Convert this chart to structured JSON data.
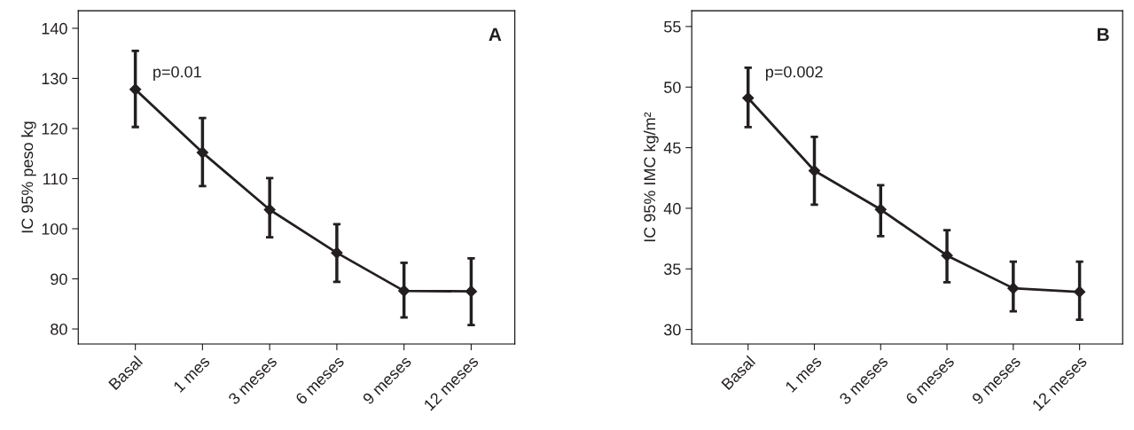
{
  "chart_data": [
    {
      "type": "line",
      "title": "A",
      "ylabel": "IC 95% peso kg",
      "annotations": [
        "p=0.01"
      ],
      "categories": [
        "Basal",
        "1 mes",
        "3 meses",
        "6 meses",
        "9 meses",
        "12 meses"
      ],
      "series": [
        {
          "color": "#231f20",
          "values": [
            127.8,
            115.2,
            103.8,
            95.2,
            87.6,
            87.5
          ],
          "errors": [
            [
              120.3,
              135.5
            ],
            [
              108.5,
              122.1
            ],
            [
              98.3,
              110.1
            ],
            [
              89.4,
              100.9
            ],
            [
              82.3,
              93.2
            ],
            [
              80.8,
              94.1
            ]
          ]
        }
      ],
      "ylim": [
        77,
        143.5
      ],
      "yticks": [
        80,
        90,
        100,
        110,
        120,
        130,
        140
      ],
      "marker": "diamond",
      "line_style": "solid",
      "grid": false,
      "legend": false
    },
    {
      "type": "line",
      "title": "B",
      "ylabel": "IC 95% IMC kg/m²",
      "annotations": [
        "p=0.002"
      ],
      "categories": [
        "Basal",
        "1 mes",
        "3 meses",
        "6 meses",
        "9 meses",
        "12 meses"
      ],
      "series": [
        {
          "color": "#231f20",
          "values": [
            49.1,
            43.1,
            39.9,
            36.1,
            33.4,
            33.1
          ],
          "errors": [
            [
              46.7,
              51.6
            ],
            [
              40.3,
              45.9
            ],
            [
              37.7,
              41.9
            ],
            [
              33.9,
              38.2
            ],
            [
              31.5,
              35.6
            ],
            [
              30.8,
              35.6
            ]
          ]
        }
      ],
      "ylim": [
        28.8,
        56.3
      ],
      "yticks": [
        30,
        35,
        40,
        45,
        50,
        55
      ],
      "marker": "diamond",
      "line_style": "solid",
      "grid": false,
      "legend": false
    }
  ]
}
